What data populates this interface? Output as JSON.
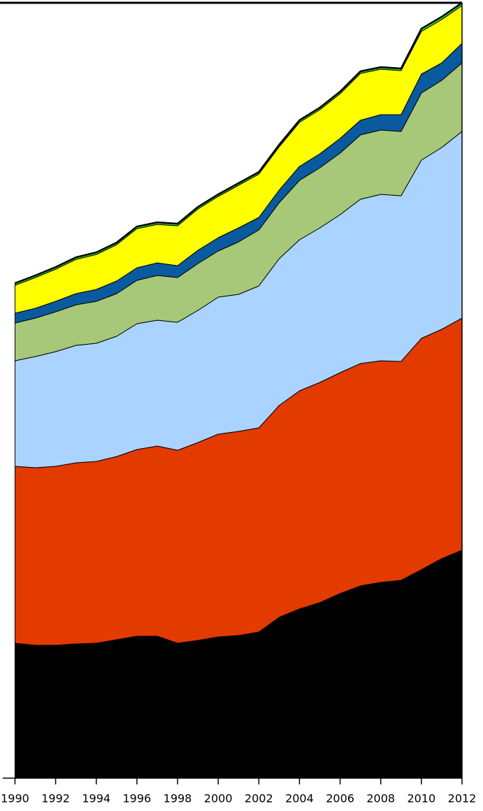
{
  "chart_data": {
    "type": "stacked_area",
    "x": [
      1990,
      1991,
      1992,
      1993,
      1994,
      1995,
      1996,
      1997,
      1998,
      1999,
      2000,
      2001,
      2002,
      2003,
      2004,
      2005,
      2006,
      2007,
      2008,
      2009,
      2010,
      2011,
      2012
    ],
    "series": [
      {
        "color": "#000000",
        "values": [
          193,
          190,
          190,
          192,
          193,
          198,
          203,
          203,
          193,
          197,
          202,
          204,
          209,
          230,
          242,
          251,
          264,
          275,
          280,
          283,
          298,
          314,
          326
        ]
      },
      {
        "color": "#e33a00",
        "values": [
          253,
          254,
          256,
          259,
          260,
          262,
          267,
          272,
          276,
          283,
          290,
          292,
          292,
          303,
          312,
          315,
          316,
          318,
          317,
          313,
          331,
          328,
          332
        ]
      },
      {
        "color": "#aad4ff",
        "values": [
          151,
          159,
          164,
          168,
          169,
          172,
          180,
          180,
          183,
          189,
          196,
          196,
          203,
          210,
          216,
          221,
          226,
          235,
          238,
          237,
          255,
          260,
          267
        ]
      },
      {
        "color": "#a6c878",
        "values": [
          54,
          55,
          57,
          58,
          60,
          61,
          62,
          64,
          64,
          67,
          66,
          75,
          80,
          80,
          85,
          86,
          88,
          92,
          92,
          92,
          96,
          96,
          98
        ]
      },
      {
        "color": "#0a5aa0",
        "values": [
          14,
          14,
          15,
          16,
          17,
          18,
          18,
          18,
          17,
          19,
          19,
          20,
          18,
          18,
          20,
          20,
          21,
          21,
          22,
          24,
          27,
          25,
          28
        ]
      },
      {
        "color": "#ffff00",
        "values": [
          40,
          44,
          46,
          49,
          50,
          52,
          56,
          55,
          57,
          59,
          59,
          61,
          62,
          62,
          63,
          63,
          64,
          67,
          65,
          63,
          61,
          62,
          54
        ]
      },
      {
        "color": "#33dd33",
        "values": [
          3,
          3,
          3,
          3,
          3,
          3,
          3,
          3,
          3,
          3,
          3,
          3,
          3,
          3,
          3,
          3,
          3,
          3,
          3,
          3,
          4,
          4,
          4
        ]
      }
    ],
    "xlim": [
      1989.4,
      2012
    ],
    "xticks": [
      1990,
      1992,
      1994,
      1996,
      1998,
      2000,
      2002,
      2004,
      2006,
      2008,
      2010,
      2012
    ],
    "ylim": [
      0,
      1110
    ]
  }
}
